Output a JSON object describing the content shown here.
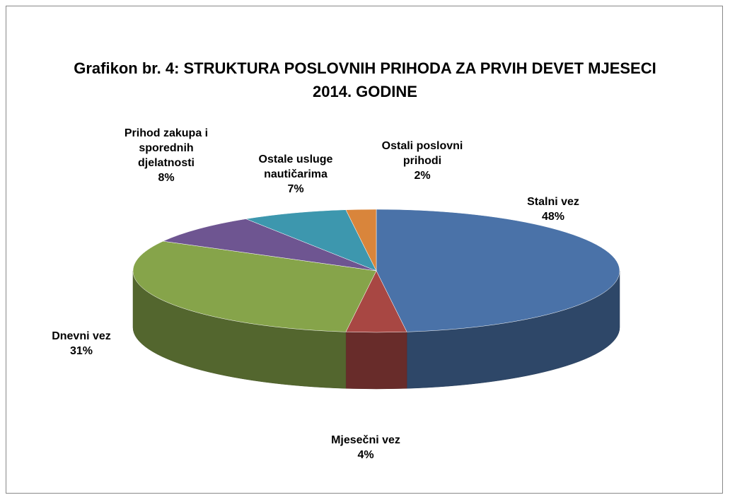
{
  "chart_data": {
    "type": "pie",
    "title": "Grafikon br. 4: STRUKTURA POSLOVNIH PRIHODA ZA PRVIH DEVET MJESECI 2014. GODINE",
    "categories": [
      "Stalni vez",
      "Mjesečni vez",
      "Dnevni vez",
      "Prihod zakupa i sporednih djelatnosti",
      "Ostale usluge nautičarima",
      "Ostali poslovni prihodi"
    ],
    "values": [
      48,
      4,
      31,
      8,
      7,
      2
    ],
    "value_labels": [
      "48%",
      "4%",
      "31%",
      "8%",
      "7%",
      "2%"
    ],
    "colors": [
      "#4a72a8",
      "#a84743",
      "#86a44a",
      "#6e5591",
      "#3d97ae",
      "#d9853b"
    ]
  }
}
